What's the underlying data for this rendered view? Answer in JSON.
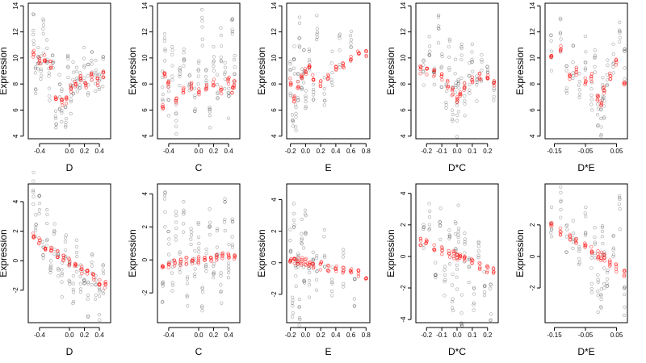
{
  "figure": {
    "rows": 2,
    "cols": 5,
    "ylabel": "Expression"
  },
  "chart_data": [
    {
      "type": "scatter",
      "xlabel": "D",
      "ylabel": "Expression",
      "xlim": [
        -0.55,
        0.55
      ],
      "ylim": [
        3.8,
        14.2
      ],
      "xticks": [
        -0.4,
        0.0,
        0.2,
        0.4
      ],
      "xtick_labels": [
        "-0.4",
        "0.0",
        "0.2",
        "0.4"
      ],
      "yticks": [
        4,
        6,
        8,
        10,
        12,
        14
      ],
      "ytick_labels": [
        "4",
        "6",
        "8",
        "10",
        "12",
        "14"
      ],
      "black_series": {
        "x": [
          -0.48,
          -0.45,
          -0.42,
          -0.38,
          -0.35,
          -0.3,
          -0.27,
          -0.22,
          -0.18,
          -0.13,
          -0.1,
          -0.05,
          -0.02,
          0.02,
          0.05,
          0.1,
          0.14,
          0.2,
          0.25,
          0.3,
          0.35,
          0.4,
          0.45
        ],
        "y": [
          12.1,
          8.2,
          10.5,
          9.3,
          11.6,
          10.2,
          7.9,
          8.8,
          6.1,
          7.4,
          6.5,
          5.2,
          8.9,
          7.1,
          8.4,
          7.9,
          8.8,
          9.4,
          8.1,
          9.3,
          8.6,
          8.2,
          9.0
        ]
      },
      "red_series": {
        "x": [
          -0.48,
          -0.4,
          -0.33,
          -0.25,
          -0.18,
          -0.1,
          -0.04,
          0.02,
          0.08,
          0.15,
          0.22,
          0.3,
          0.38,
          0.45
        ],
        "y": [
          10.3,
          9.8,
          10.0,
          9.5,
          6.9,
          6.6,
          6.8,
          7.6,
          8.0,
          8.4,
          7.9,
          8.6,
          8.2,
          8.7
        ]
      }
    },
    {
      "type": "scatter",
      "xlabel": "C",
      "ylabel": "Expression",
      "xlim": [
        -0.55,
        0.55
      ],
      "ylim": [
        3.8,
        14.2
      ],
      "xticks": [
        -0.4,
        0.0,
        0.2,
        0.4
      ],
      "xtick_labels": [
        "-0.4",
        "0.0",
        "0.2",
        "0.4"
      ],
      "yticks": [
        4,
        6,
        8,
        10,
        12,
        14
      ],
      "ytick_labels": [
        "4",
        "6",
        "8",
        "10",
        "12",
        "14"
      ],
      "black_series": {
        "x": [
          -0.48,
          -0.45,
          -0.4,
          -0.35,
          -0.3,
          -0.25,
          -0.2,
          -0.12,
          -0.05,
          0.0,
          0.05,
          0.1,
          0.15,
          0.2,
          0.25,
          0.3,
          0.35,
          0.4,
          0.45,
          0.48
        ],
        "y": [
          8.0,
          11.2,
          6.9,
          9.6,
          5.5,
          8.3,
          10.5,
          7.7,
          6.4,
          9.1,
          12.4,
          8.0,
          5.9,
          10.2,
          7.3,
          11.0,
          8.6,
          6.5,
          12.8,
          9.4
        ]
      },
      "red_series": {
        "x": [
          -0.48,
          -0.45,
          -0.4,
          -0.3,
          -0.2,
          -0.1,
          0.0,
          0.1,
          0.2,
          0.3,
          0.4,
          0.45,
          0.48
        ],
        "y": [
          6.4,
          8.6,
          8.0,
          6.7,
          7.6,
          7.9,
          7.4,
          7.8,
          8.1,
          7.5,
          8.2,
          7.6,
          8.0
        ]
      }
    },
    {
      "type": "scatter",
      "xlabel": "E",
      "ylabel": "Expression",
      "xlim": [
        -0.25,
        0.85
      ],
      "ylim": [
        3.8,
        14.2
      ],
      "xticks": [
        -0.2,
        0.0,
        0.2,
        0.4,
        0.6,
        0.8
      ],
      "xtick_labels": [
        "-0.2",
        "0.0",
        "0.2",
        "0.4",
        "0.6",
        "0.8"
      ],
      "yticks": [
        4,
        6,
        8,
        10,
        12,
        14
      ],
      "ytick_labels": [
        "4",
        "6",
        "8",
        "10",
        "12",
        "14"
      ],
      "black_series": {
        "x": [
          -0.2,
          -0.17,
          -0.15,
          -0.13,
          -0.1,
          -0.08,
          -0.05,
          -0.02,
          0.0,
          0.05,
          0.1,
          0.15,
          0.25,
          0.35,
          0.45,
          0.6
        ],
        "y": [
          8.4,
          6.1,
          9.7,
          5.2,
          7.6,
          11.8,
          8.8,
          9.5,
          6.9,
          10.4,
          8.2,
          12.3,
          7.7,
          9.1,
          10.6,
          10.8
        ]
      },
      "red_series": {
        "x": [
          -0.2,
          -0.15,
          -0.1,
          -0.05,
          0.0,
          0.05,
          0.1,
          0.2,
          0.3,
          0.4,
          0.5,
          0.6,
          0.7,
          0.8
        ],
        "y": [
          8.2,
          6.8,
          7.9,
          8.4,
          8.9,
          9.3,
          8.6,
          8.0,
          8.5,
          9.1,
          9.4,
          10.0,
          10.2,
          10.4
        ]
      }
    },
    {
      "type": "scatter",
      "xlabel": "D*C",
      "ylabel": "Expression",
      "xlim": [
        -0.27,
        0.27
      ],
      "ylim": [
        3.8,
        14.2
      ],
      "xticks": [
        -0.2,
        -0.1,
        0.0,
        0.1,
        0.2
      ],
      "xtick_labels": [
        "-0.2",
        "-0.1",
        "0.0",
        "0.1",
        "0.2"
      ],
      "yticks": [
        4,
        6,
        8,
        10,
        12,
        14
      ],
      "ytick_labels": [
        "4",
        "6",
        "8",
        "10",
        "12",
        "14"
      ],
      "black_series": {
        "x": [
          -0.22,
          -0.18,
          -0.15,
          -0.12,
          -0.1,
          -0.07,
          -0.05,
          -0.03,
          -0.01,
          0.0,
          0.01,
          0.03,
          0.05,
          0.08,
          0.1,
          0.13,
          0.16,
          0.2,
          0.24
        ],
        "y": [
          9.3,
          10.6,
          8.4,
          11.9,
          9.2,
          7.6,
          10.1,
          6.5,
          8.8,
          5.3,
          7.1,
          9.7,
          6.8,
          8.3,
          10.4,
          7.2,
          8.9,
          9.9,
          7.5
        ]
      },
      "red_series": {
        "x": [
          -0.24,
          -0.2,
          -0.15,
          -0.1,
          -0.06,
          -0.03,
          0.0,
          0.02,
          0.05,
          0.1,
          0.15,
          0.2,
          0.24
        ],
        "y": [
          9.1,
          9.0,
          8.8,
          8.6,
          8.0,
          7.4,
          6.8,
          7.2,
          7.8,
          8.3,
          8.6,
          8.4,
          8.1
        ]
      }
    },
    {
      "type": "scatter",
      "xlabel": "D*E",
      "ylabel": "Expression",
      "xlim": [
        -0.18,
        0.085
      ],
      "ylim": [
        3.8,
        14.2
      ],
      "xticks": [
        -0.15,
        -0.05,
        0.05
      ],
      "xtick_labels": [
        "-0.15",
        "-0.05",
        "0.05"
      ],
      "yticks": [
        4,
        6,
        8,
        10,
        12,
        14
      ],
      "ytick_labels": [
        "4",
        "6",
        "8",
        "10",
        "12",
        "14"
      ],
      "black_series": {
        "x": [
          -0.16,
          -0.13,
          -0.11,
          -0.09,
          -0.07,
          -0.05,
          -0.03,
          -0.02,
          -0.01,
          0.0,
          0.005,
          0.01,
          0.02,
          0.04,
          0.06,
          0.075
        ],
        "y": [
          10.3,
          11.8,
          8.6,
          9.8,
          8.1,
          10.5,
          7.4,
          9.2,
          6.2,
          5.1,
          7.8,
          6.6,
          8.9,
          10.1,
          11.5,
          9.4
        ]
      },
      "red_series": {
        "x": [
          -0.16,
          -0.13,
          -0.1,
          -0.08,
          -0.05,
          -0.03,
          -0.01,
          0.0,
          0.01,
          0.03,
          0.05,
          0.075
        ],
        "y": [
          10.0,
          10.8,
          8.6,
          9.0,
          8.2,
          8.5,
          7.0,
          6.6,
          7.5,
          8.6,
          9.6,
          7.9
        ]
      }
    },
    {
      "type": "scatter",
      "xlabel": "D",
      "ylabel": "Expression",
      "xlim": [
        -0.55,
        0.55
      ],
      "ylim": [
        -4.2,
        5.2
      ],
      "xticks": [
        -0.4,
        0.0,
        0.2,
        0.4
      ],
      "xtick_labels": [
        "-0.4",
        "0.0",
        "0.2",
        "0.4"
      ],
      "yticks": [
        -2,
        0,
        2,
        4
      ],
      "ytick_labels": [
        "-2",
        "0",
        "2",
        "4"
      ],
      "black_series": {
        "x": [
          -0.48,
          -0.45,
          -0.4,
          -0.35,
          -0.3,
          -0.25,
          -0.2,
          -0.15,
          -0.1,
          -0.05,
          0.0,
          0.05,
          0.1,
          0.15,
          0.2,
          0.25,
          0.3,
          0.35,
          0.4,
          0.45
        ],
        "y": [
          4.8,
          2.5,
          3.4,
          1.1,
          2.2,
          -0.4,
          1.6,
          0.2,
          -1.3,
          1.0,
          -0.6,
          -2.1,
          0.4,
          -1.6,
          -0.3,
          -2.5,
          -0.8,
          -1.9,
          -3.0,
          -1.2
        ]
      },
      "red_series": {
        "x": [
          -0.48,
          -0.4,
          -0.32,
          -0.24,
          -0.16,
          -0.08,
          0.0,
          0.08,
          0.16,
          0.24,
          0.32,
          0.4,
          0.48
        ],
        "y": [
          1.6,
          1.3,
          1.0,
          0.8,
          0.5,
          0.2,
          -0.1,
          -0.4,
          -0.6,
          -0.9,
          -1.1,
          -1.4,
          -1.7
        ]
      }
    },
    {
      "type": "scatter",
      "xlabel": "C",
      "ylabel": "Expression",
      "xlim": [
        -0.55,
        0.55
      ],
      "ylim": [
        -3.8,
        4.6
      ],
      "xticks": [
        -0.4,
        0.0,
        0.2,
        0.4
      ],
      "xtick_labels": [
        "-0.4",
        "0.0",
        "0.2",
        "0.4"
      ],
      "yticks": [
        -2,
        0,
        2,
        4
      ],
      "ytick_labels": [
        "-2",
        "0",
        "2",
        "4"
      ],
      "black_series": {
        "x": [
          -0.48,
          -0.45,
          -0.4,
          -0.35,
          -0.3,
          -0.25,
          -0.2,
          -0.15,
          -0.1,
          -0.05,
          0.0,
          0.05,
          0.1,
          0.15,
          0.2,
          0.25,
          0.3,
          0.35,
          0.4,
          0.45
        ],
        "y": [
          -2.3,
          3.1,
          0.6,
          -1.2,
          1.9,
          -0.5,
          2.4,
          -1.8,
          0.9,
          -0.3,
          1.5,
          -2.6,
          0.2,
          2.1,
          -0.9,
          1.1,
          -1.5,
          2.7,
          -0.2,
          1.6
        ]
      },
      "red_series": {
        "x": [
          -0.48,
          -0.4,
          -0.32,
          -0.24,
          -0.16,
          -0.08,
          0.0,
          0.08,
          0.16,
          0.24,
          0.32,
          0.4,
          0.48
        ],
        "y": [
          -0.3,
          -0.25,
          -0.2,
          -0.15,
          -0.1,
          -0.05,
          0.0,
          0.05,
          0.1,
          0.14,
          0.18,
          0.22,
          0.26
        ]
      }
    },
    {
      "type": "scatter",
      "xlabel": "E",
      "ylabel": "Expression",
      "xlim": [
        -0.25,
        0.85
      ],
      "ylim": [
        -3.8,
        5.0
      ],
      "xticks": [
        -0.2,
        0.0,
        0.2,
        0.4,
        0.6,
        0.8
      ],
      "xtick_labels": [
        "-0.2",
        "0.0",
        "0.2",
        "0.4",
        "0.6",
        "0.8"
      ],
      "yticks": [
        -2,
        0,
        2,
        4
      ],
      "ytick_labels": [
        "-2",
        "0",
        "2",
        "4"
      ],
      "black_series": {
        "x": [
          -0.2,
          -0.17,
          -0.15,
          -0.13,
          -0.1,
          -0.08,
          -0.05,
          -0.02,
          0.0,
          0.05,
          0.1,
          0.15,
          0.25,
          0.35,
          0.5,
          0.65
        ],
        "y": [
          1.2,
          -2.4,
          3.3,
          -0.8,
          0.6,
          -3.1,
          1.9,
          -0.2,
          2.5,
          -1.4,
          0.3,
          -0.6,
          0.9,
          -1.1,
          -0.4,
          -1.8
        ]
      },
      "red_series": {
        "x": [
          -0.2,
          -0.15,
          -0.1,
          -0.05,
          0.0,
          0.05,
          0.1,
          0.2,
          0.3,
          0.4,
          0.5,
          0.6,
          0.7,
          0.8
        ],
        "y": [
          0.3,
          0.2,
          0.1,
          0.05,
          0.0,
          -0.05,
          -0.1,
          -0.2,
          -0.3,
          -0.4,
          -0.5,
          -0.6,
          -0.7,
          -0.8
        ]
      }
    },
    {
      "type": "scatter",
      "xlabel": "D*C",
      "ylabel": "Expression",
      "xlim": [
        -0.27,
        0.27
      ],
      "ylim": [
        -4.2,
        4.6
      ],
      "xticks": [
        -0.2,
        -0.1,
        0.0,
        0.1,
        0.2
      ],
      "xtick_labels": [
        "-0.2",
        "-0.1",
        "0.0",
        "0.1",
        "0.2"
      ],
      "yticks": [
        -4,
        -2,
        0,
        2,
        4
      ],
      "ytick_labels": [
        "-4",
        "-2",
        "0",
        "2",
        "4"
      ],
      "black_series": {
        "x": [
          -0.22,
          -0.18,
          -0.14,
          -0.11,
          -0.08,
          -0.05,
          -0.03,
          -0.01,
          0.0,
          0.01,
          0.03,
          0.05,
          0.08,
          0.11,
          0.14,
          0.18,
          0.22
        ],
        "y": [
          1.2,
          2.6,
          -0.4,
          1.9,
          -1.6,
          0.7,
          -2.2,
          1.3,
          -0.9,
          2.1,
          -3.4,
          0.4,
          -1.3,
          -2.6,
          0.8,
          -1.7,
          -2.9
        ]
      },
      "red_series": {
        "x": [
          -0.24,
          -0.2,
          -0.15,
          -0.1,
          -0.05,
          -0.02,
          0.0,
          0.02,
          0.05,
          0.1,
          0.15,
          0.2,
          0.24
        ],
        "y": [
          0.95,
          0.8,
          0.6,
          0.4,
          0.2,
          0.08,
          0.0,
          -0.08,
          -0.2,
          -0.4,
          -0.6,
          -0.8,
          -0.95
        ]
      }
    },
    {
      "type": "scatter",
      "xlabel": "D*E",
      "ylabel": "Expression",
      "xlim": [
        -0.18,
        0.085
      ],
      "ylim": [
        -4.2,
        4.6
      ],
      "xticks": [
        -0.15,
        -0.05,
        0.05
      ],
      "xtick_labels": [
        "-0.15",
        "-0.05",
        "0.05"
      ],
      "yticks": [
        -2,
        0,
        2
      ],
      "ytick_labels": [
        "-2",
        "0",
        "2"
      ],
      "black_series": {
        "x": [
          -0.16,
          -0.13,
          -0.11,
          -0.09,
          -0.07,
          -0.05,
          -0.03,
          -0.02,
          -0.01,
          0.0,
          0.005,
          0.01,
          0.02,
          0.04,
          0.06,
          0.075
        ],
        "y": [
          2.4,
          3.6,
          0.8,
          1.7,
          -0.4,
          2.2,
          -1.1,
          0.6,
          -2.3,
          -3.1,
          1.3,
          -0.8,
          -1.9,
          0.9,
          2.8,
          -2.6
        ]
      },
      "red_series": {
        "x": [
          -0.16,
          -0.13,
          -0.1,
          -0.08,
          -0.05,
          -0.03,
          -0.01,
          0.0,
          0.01,
          0.03,
          0.05,
          0.075
        ],
        "y": [
          1.9,
          1.6,
          1.2,
          1.0,
          0.6,
          0.4,
          0.1,
          0.0,
          -0.1,
          -0.4,
          -0.7,
          -1.0
        ]
      }
    }
  ]
}
